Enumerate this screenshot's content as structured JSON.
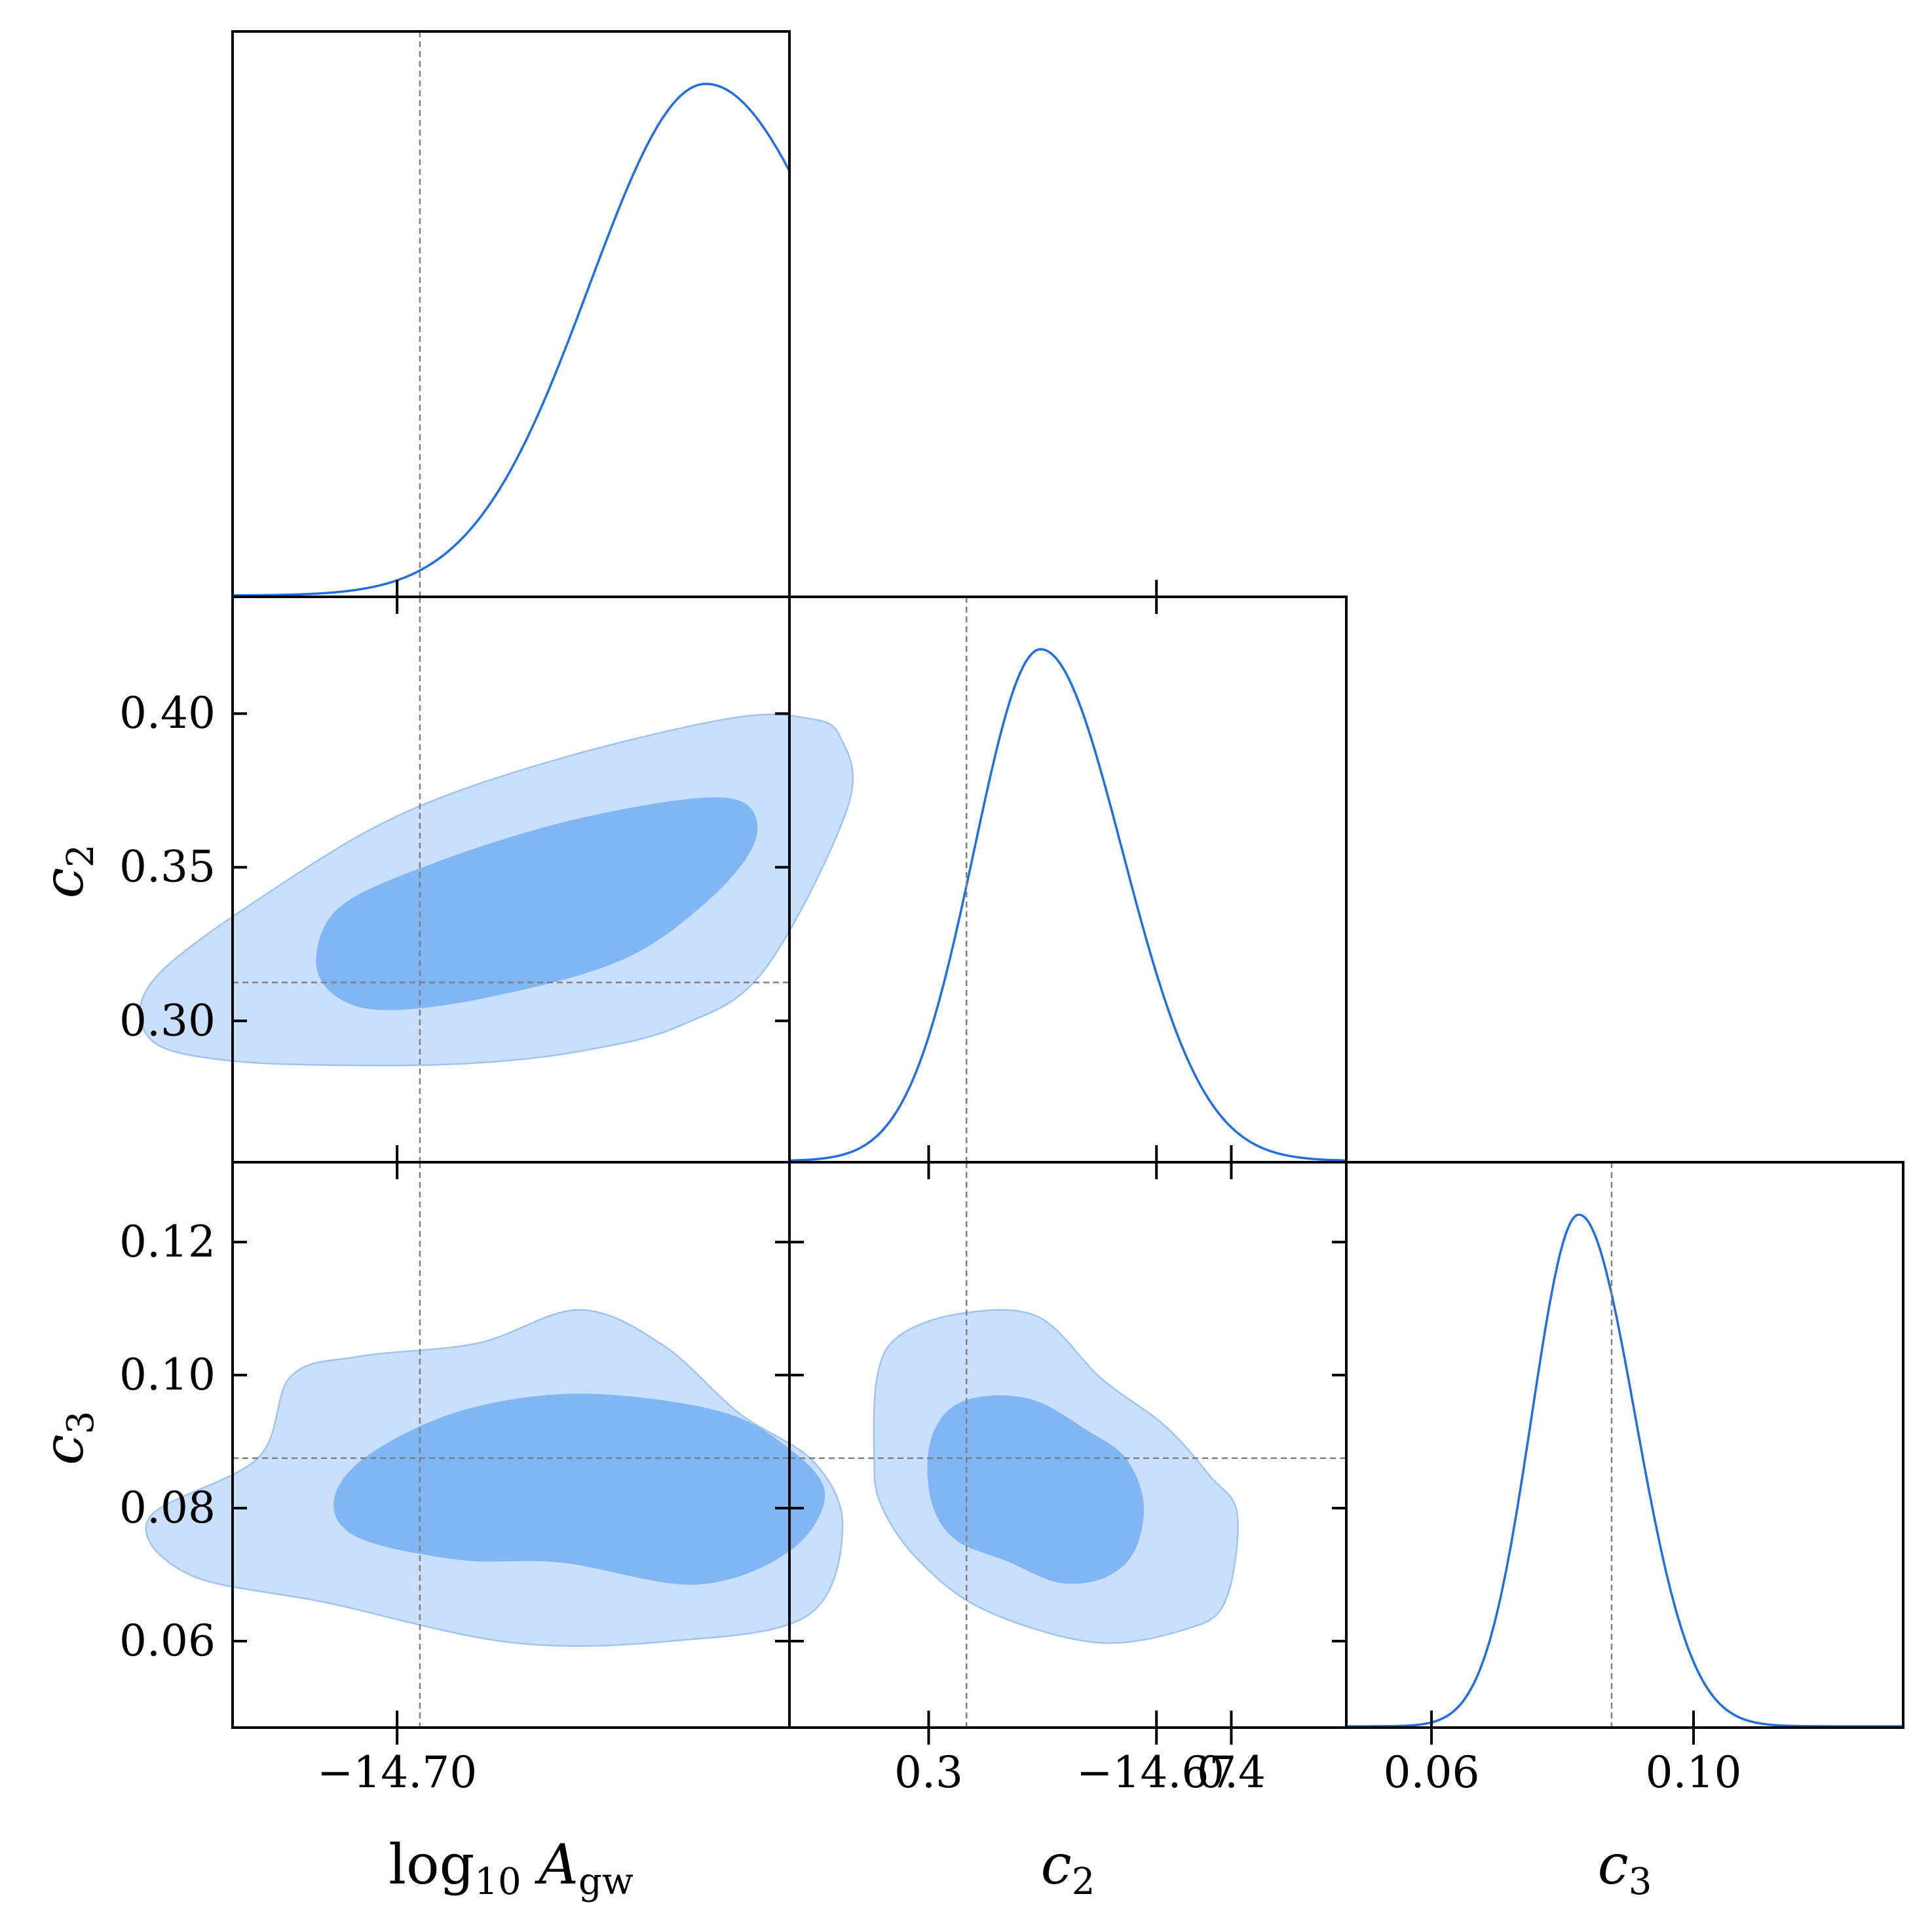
{
  "colors": {
    "line": "#1f6fe0",
    "fill_inner": "#80b6f4",
    "fill_outer": "#cadffa",
    "contour_edge": "#9fc4f2",
    "reference": "#808080",
    "frame": "#000000"
  },
  "chart_data": {
    "type": "corner",
    "parameters": [
      {
        "key": "A",
        "label_parts": [
          {
            "text": "log"
          },
          {
            "text": "10",
            "sub": true
          },
          {
            "text": " "
          },
          {
            "text": "A",
            "italic": true
          },
          {
            "text": "gw",
            "sub": true
          }
        ],
        "range": [
          -14.7065,
          -14.6845
        ],
        "ticks": [
          -14.7,
          -14.67
        ],
        "tick_labels": [
          "−14.70",
          "−14.67"
        ],
        "truth": -14.6991,
        "peak": -14.6878,
        "marginal_sigma_left": 0.0046,
        "marginal_sigma_right": 0.0054
      },
      {
        "key": "c2",
        "label_parts": [
          {
            "text": "c",
            "italic": true
          },
          {
            "text": "2",
            "sub": true
          }
        ],
        "range": [
          0.254,
          0.438
        ],
        "ticks": [
          0.3,
          0.35,
          0.4
        ],
        "tick_labels": [
          "0.30",
          "0.35",
          "0.40"
        ],
        "ticks_bottom": [
          0.3,
          0.4
        ],
        "tick_labels_bottom": [
          "0.3",
          "0.4"
        ],
        "truth": 0.3125,
        "peak": 0.337,
        "marginal_sigma_left": 0.022,
        "marginal_sigma_right": 0.027
      },
      {
        "key": "c3",
        "label_parts": [
          {
            "text": "c",
            "italic": true
          },
          {
            "text": "3",
            "sub": true
          }
        ],
        "range": [
          0.047,
          0.132
        ],
        "ticks": [
          0.06,
          0.08,
          0.1,
          0.12
        ],
        "tick_labels": [
          "0.06",
          "0.08",
          "0.10",
          "0.12"
        ],
        "ticks_bottom": [
          0.06,
          0.1
        ],
        "tick_labels_bottom": [
          "0.06",
          "0.10"
        ],
        "truth": 0.0875,
        "peak": 0.0825,
        "marginal_sigma_left": 0.0072,
        "marginal_sigma_right": 0.0086
      }
    ],
    "contours": [
      {
        "x": "A",
        "y": "c2",
        "outer": [
          [
            -14.7012,
            0.2855
          ],
          [
            -14.6965,
            0.2865
          ],
          [
            -14.6925,
            0.2905
          ],
          [
            -14.6888,
            0.2985
          ],
          [
            -14.6855,
            0.3165
          ],
          [
            -14.6822,
            0.3695
          ],
          [
            -14.6825,
            0.3925
          ],
          [
            -14.6838,
            0.3985
          ],
          [
            -14.6868,
            0.3985
          ],
          [
            -14.6935,
            0.3855
          ],
          [
            -14.6995,
            0.3685
          ],
          [
            -14.7042,
            0.3465
          ],
          [
            -14.7095,
            0.3145
          ],
          [
            -14.7098,
            0.2945
          ],
          [
            -14.7068,
            0.2872
          ]
        ],
        "inner": [
          [
            -14.7005,
            0.3035
          ],
          [
            -14.6965,
            0.3075
          ],
          [
            -14.6912,
            0.3195
          ],
          [
            -14.6878,
            0.3385
          ],
          [
            -14.6859,
            0.3575
          ],
          [
            -14.6862,
            0.3705
          ],
          [
            -14.6885,
            0.3722
          ],
          [
            -14.6935,
            0.3645
          ],
          [
            -14.6985,
            0.3515
          ],
          [
            -14.7022,
            0.3375
          ],
          [
            -14.7032,
            0.3205
          ],
          [
            -14.7025,
            0.3085
          ]
        ]
      },
      {
        "x": "A",
        "y": "c3",
        "outer": [
          [
            -14.6955,
            0.0598
          ],
          [
            -14.6892,
            0.06
          ],
          [
            -14.6838,
            0.0638
          ],
          [
            -14.6824,
            0.0768
          ],
          [
            -14.6835,
            0.0868
          ],
          [
            -14.6865,
            0.0943
          ],
          [
            -14.6895,
            0.1045
          ],
          [
            -14.6928,
            0.1098
          ],
          [
            -14.6968,
            0.1048
          ],
          [
            -14.7015,
            0.1028
          ],
          [
            -14.7042,
            0.0998
          ],
          [
            -14.7055,
            0.0875
          ],
          [
            -14.7098,
            0.0785
          ],
          [
            -14.7082,
            0.07
          ],
          [
            -14.7028,
            0.0658
          ]
        ],
        "inner": [
          [
            -14.6935,
            0.0718
          ],
          [
            -14.6882,
            0.0685
          ],
          [
            -14.6845,
            0.0735
          ],
          [
            -14.6831,
            0.0823
          ],
          [
            -14.6848,
            0.0898
          ],
          [
            -14.6875,
            0.0948
          ],
          [
            -14.6928,
            0.0972
          ],
          [
            -14.6975,
            0.0946
          ],
          [
            -14.7012,
            0.0878
          ],
          [
            -14.7025,
            0.081
          ],
          [
            -14.7015,
            0.0755
          ],
          [
            -14.6975,
            0.0722
          ]
        ]
      },
      {
        "x": "c2",
        "y": "c3",
        "outer": [
          [
            -0.0,
            0.0
          ]
        ],
        "outer_points": [
          [
            0.318,
            0.0648
          ],
          [
            0.355,
            0.0598
          ],
          [
            0.385,
            0.0618
          ],
          [
            0.398,
            0.066
          ],
          [
            0.402,
            0.079
          ],
          [
            0.393,
            0.0848
          ],
          [
            0.378,
            0.0924
          ],
          [
            0.357,
            0.0995
          ],
          [
            0.336,
            0.1088
          ],
          [
            0.31,
            0.1092
          ],
          [
            0.29,
            0.1058
          ],
          [
            0.283,
            0.0998
          ],
          [
            0.282,
            0.088
          ],
          [
            0.284,
            0.0808
          ],
          [
            0.296,
            0.0725
          ]
        ],
        "inner_points": [
          [
            0.326,
            0.072
          ],
          [
            0.343,
            0.0688
          ],
          [
            0.358,
            0.0695
          ],
          [
            0.368,
            0.0735
          ],
          [
            0.371,
            0.0808
          ],
          [
            0.365,
            0.0876
          ],
          [
            0.352,
            0.0918
          ],
          [
            0.335,
            0.0962
          ],
          [
            0.318,
            0.0968
          ],
          [
            0.306,
            0.0945
          ],
          [
            0.3,
            0.0888
          ],
          [
            0.301,
            0.0808
          ],
          [
            0.309,
            0.0752
          ]
        ]
      }
    ]
  }
}
